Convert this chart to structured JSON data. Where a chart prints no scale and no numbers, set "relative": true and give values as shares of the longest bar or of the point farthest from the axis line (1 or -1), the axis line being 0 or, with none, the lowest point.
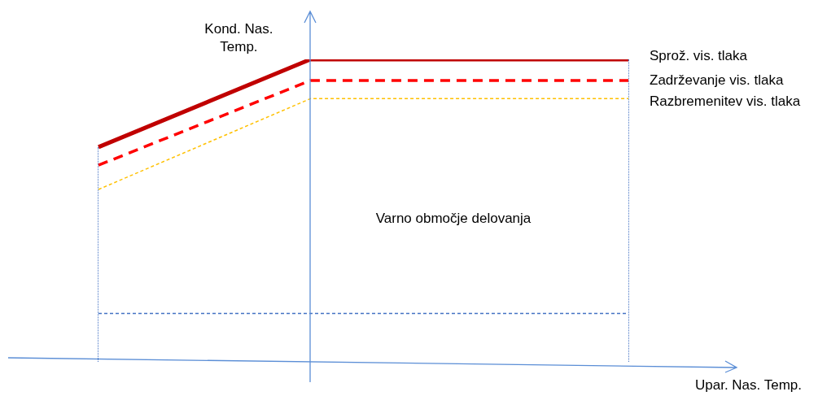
{
  "chart_data": {
    "type": "line",
    "relative": true,
    "ylabel": "Kond. Nas. Temp.",
    "xlabel": "Upar. Nas. Temp.",
    "categories": [
      null,
      null,
      null,
      null,
      null,
      null
    ],
    "series": [
      {
        "name": "Sprož. vis. tlaka",
        "color": "#c00000",
        "line_style": "solid",
        "values": [
          0.71,
          null,
          1,
          null,
          null,
          1
        ]
      },
      {
        "name": "Zadrževanje vis. tlaka",
        "color": "#ff0000",
        "line_style": "dashed",
        "values": [
          0.65,
          null,
          0.93,
          null,
          null,
          0.93
        ]
      },
      {
        "name": "Razbremenitev vis. tlaka",
        "color": "#ffc000",
        "line_style": "dotted",
        "values": [
          0.57,
          null,
          0.87,
          null,
          null,
          0.87
        ]
      }
    ],
    "ref_lines": [
      {
        "axis": "y",
        "value": 0.16,
        "color": "#4472c4",
        "line_style": "dotted"
      }
    ],
    "annotations": [
      "Varno območje delovanja"
    ],
    "legend": false,
    "marker": "none"
  }
}
